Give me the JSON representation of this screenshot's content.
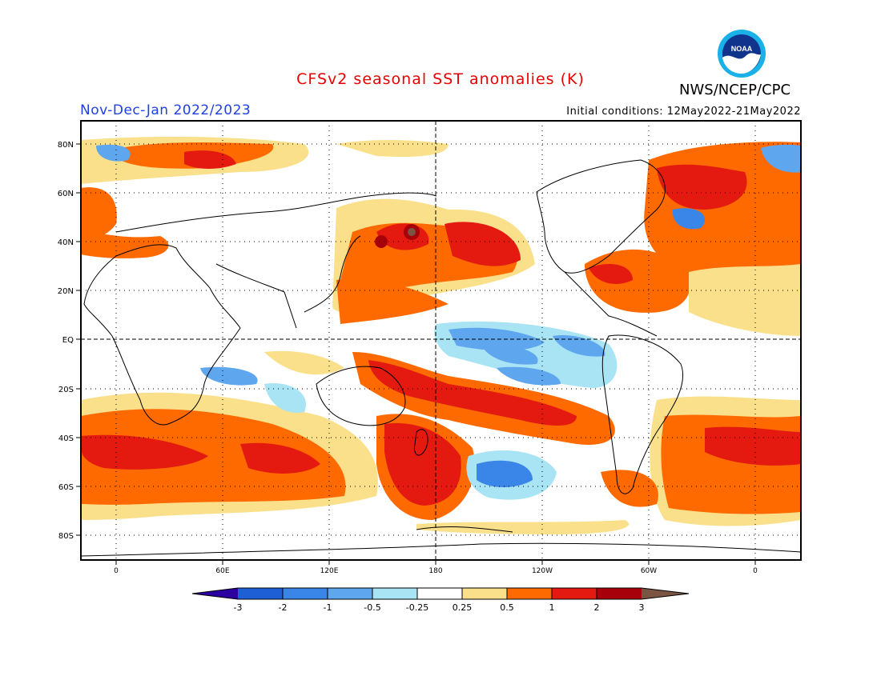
{
  "title": "CFSv2 seasonal SST anomalies (K)",
  "agency": "NWS/NCEP/CPC",
  "logo_text": "NOAA",
  "period": "Nov-Dec-Jan 2022/2023",
  "initial_conditions": "Initial conditions: 12May2022-21May2022",
  "map": {
    "lat_labels": [
      "80N",
      "60N",
      "40N",
      "20N",
      "EQ",
      "20S",
      "40S",
      "60S",
      "80S"
    ],
    "lon_labels": [
      "0",
      "60E",
      "120E",
      "180",
      "120W",
      "60W",
      "0"
    ]
  },
  "colorbar": {
    "labels": [
      "-3",
      "-2",
      "-1",
      "-0.5",
      "-0.25",
      "0.25",
      "0.5",
      "1",
      "2",
      "3"
    ],
    "colors": [
      "#2c00a0",
      "#1e5fd6",
      "#3a86e8",
      "#5ea6ee",
      "#a8e4f4",
      "#ffffff",
      "#fbe08c",
      "#ff6a00",
      "#e41a10",
      "#a8000a",
      "#7a5544"
    ]
  }
}
